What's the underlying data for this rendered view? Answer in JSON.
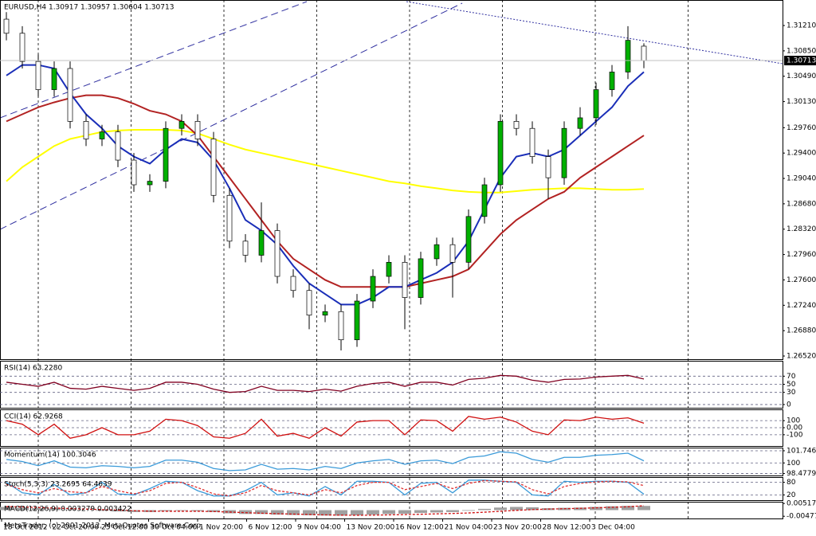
{
  "chart_data": [
    {
      "type": "candlestick",
      "title": "EURUSD,H4 1.30917 1.30957 1.30604 1.30713",
      "last_price": 1.30713,
      "ylim": [
        1.26475,
        1.31572
      ],
      "yticks": [
        {
          "value": 1.3121,
          "label": "1.31210"
        },
        {
          "value": 1.3085,
          "label": "1.30850"
        },
        {
          "value": 1.3049,
          "label": "1.30490"
        },
        {
          "value": 1.3013,
          "label": "1.30130"
        },
        {
          "value": 1.2976,
          "label": "1.29760"
        },
        {
          "value": 1.294,
          "label": "1.29400"
        },
        {
          "value": 1.2904,
          "label": "1.29040"
        },
        {
          "value": 1.2868,
          "label": "1.28680"
        },
        {
          "value": 1.2832,
          "label": "1.28320"
        },
        {
          "value": 1.2796,
          "label": "1.27960"
        },
        {
          "value": 1.276,
          "label": "1.27600"
        },
        {
          "value": 1.2724,
          "label": "1.27240"
        },
        {
          "value": 1.2688,
          "label": "1.26880"
        },
        {
          "value": 1.2652,
          "label": "1.26520"
        }
      ],
      "x_labels": [
        "18 Oct 2012",
        "22 Oct 20:00",
        "25 Oct 12:00",
        "30 Oct 04:00",
        "1 Nov 20:00",
        "6 Nov 12:00",
        "9 Nov 04:00",
        "13 Nov 20:00",
        "16 Nov 12:00",
        "21 Nov 04:00",
        "23 Nov 20:00",
        "28 Nov 12:00",
        "3 Dec 04:00"
      ],
      "up_color": "#00b000",
      "down_color": "#ffffff",
      "open": [
        1.313,
        1.311,
        1.307,
        1.303,
        1.306,
        1.2985,
        1.296,
        1.297,
        1.293,
        1.2895,
        1.29,
        1.2975,
        1.2985,
        1.296,
        1.288,
        1.2815,
        1.2795,
        1.283,
        1.2765,
        1.2745,
        1.271,
        1.2715,
        1.2675,
        1.273,
        1.2765,
        1.2785,
        1.2735,
        1.279,
        1.281,
        1.2785,
        1.285,
        1.2895,
        1.2985,
        1.2975,
        1.2935,
        1.2905,
        1.2975,
        1.299,
        1.303,
        1.3055,
        1.30917
      ],
      "high": [
        1.314,
        1.312,
        1.308,
        1.307,
        1.307,
        1.2995,
        1.298,
        1.298,
        1.294,
        1.291,
        1.2985,
        1.2995,
        1.2995,
        1.297,
        1.289,
        1.2825,
        1.287,
        1.284,
        1.2775,
        1.2755,
        1.2725,
        1.2725,
        1.274,
        1.2775,
        1.2795,
        1.2795,
        1.28,
        1.282,
        1.282,
        1.286,
        1.2905,
        1.2995,
        1.2995,
        1.2985,
        1.2945,
        1.2985,
        1.3005,
        1.304,
        1.3065,
        1.312,
        1.30957
      ],
      "low": [
        1.31,
        1.306,
        1.302,
        1.302,
        1.2975,
        1.295,
        1.295,
        1.292,
        1.2885,
        1.2885,
        1.289,
        1.2965,
        1.295,
        1.287,
        1.2805,
        1.2785,
        1.2785,
        1.2755,
        1.2735,
        1.269,
        1.27,
        1.266,
        1.2665,
        1.272,
        1.2755,
        1.269,
        1.2725,
        1.278,
        1.2735,
        1.2775,
        1.284,
        1.2885,
        1.2965,
        1.2925,
        1.2875,
        1.2895,
        1.2965,
        1.298,
        1.302,
        1.3045,
        1.30604
      ],
      "close": [
        1.311,
        1.307,
        1.303,
        1.306,
        1.2985,
        1.296,
        1.297,
        1.293,
        1.2895,
        1.29,
        1.2975,
        1.2985,
        1.296,
        1.288,
        1.2815,
        1.2795,
        1.283,
        1.2765,
        1.2745,
        1.271,
        1.2715,
        1.2675,
        1.273,
        1.2765,
        1.2785,
        1.2735,
        1.279,
        1.281,
        1.2785,
        1.285,
        1.2895,
        1.2985,
        1.2975,
        1.2935,
        1.2905,
        1.2975,
        1.299,
        1.303,
        1.3055,
        1.31,
        1.30713
      ],
      "series": [
        {
          "color": "#ffff00",
          "values": [
            1.29,
            1.292,
            1.2935,
            1.295,
            1.296,
            1.2965,
            1.297,
            1.2972,
            1.2973,
            1.2973,
            1.2973,
            1.2972,
            1.2968,
            1.296,
            1.2952,
            1.2945,
            1.294,
            1.2935,
            1.293,
            1.2925,
            1.292,
            1.2915,
            1.291,
            1.2905,
            1.29,
            1.2897,
            1.2893,
            1.289,
            1.2887,
            1.2885,
            1.2884,
            1.2884,
            1.2886,
            1.2888,
            1.2889,
            1.289,
            1.289,
            1.2889,
            1.2888,
            1.2888,
            1.2889
          ]
        },
        {
          "color": "#b22222",
          "values": [
            1.2985,
            1.2995,
            1.3005,
            1.3012,
            1.3018,
            1.3022,
            1.3022,
            1.3018,
            1.301,
            1.3,
            1.2995,
            1.2985,
            1.2965,
            1.2935,
            1.2905,
            1.2875,
            1.2845,
            1.2815,
            1.279,
            1.2775,
            1.276,
            1.275,
            1.275,
            1.275,
            1.275,
            1.275,
            1.2755,
            1.276,
            1.2765,
            1.2775,
            1.28,
            1.2825,
            1.2845,
            1.286,
            1.2875,
            1.2885,
            1.2905,
            1.292,
            1.2935,
            1.295,
            1.2965
          ]
        },
        {
          "color": "#1a2eb8",
          "values": [
            1.305,
            1.3065,
            1.3065,
            1.306,
            1.3025,
            1.2995,
            1.2975,
            1.295,
            1.2935,
            1.2925,
            1.2945,
            1.296,
            1.2955,
            1.293,
            1.289,
            1.2845,
            1.283,
            1.281,
            1.278,
            1.2755,
            1.274,
            1.2725,
            1.2725,
            1.2735,
            1.275,
            1.275,
            1.276,
            1.277,
            1.2785,
            1.2815,
            1.286,
            1.2905,
            1.2935,
            1.294,
            1.2935,
            1.2945,
            1.2965,
            1.2985,
            1.3005,
            1.3035,
            1.3055
          ]
        }
      ]
    },
    {
      "type": "indicator",
      "title": "RSI(14) 63.2280",
      "ylim": [
        -8,
        108
      ],
      "yticks": [
        70,
        50,
        30,
        0
      ],
      "grid": true,
      "series": [
        {
          "color": "#800020",
          "style": "line",
          "values": [
            55,
            50,
            45,
            55,
            40,
            38,
            45,
            40,
            35,
            40,
            55,
            55,
            50,
            38,
            30,
            32,
            45,
            35,
            35,
            32,
            38,
            33,
            45,
            52,
            55,
            45,
            55,
            55,
            48,
            62,
            65,
            72,
            70,
            60,
            55,
            62,
            63,
            68,
            70,
            72,
            63
          ]
        }
      ]
    },
    {
      "type": "indicator",
      "title": "CCI(14) 62.9268",
      "ylim": [
        -260,
        260
      ],
      "yticks": [
        100,
        {
          "value": 0,
          "label": "0.00"
        },
        -100
      ],
      "grid": true,
      "series": [
        {
          "color": "#d01010",
          "style": "line",
          "values": [
            100,
            50,
            -100,
            50,
            -150,
            -100,
            0,
            -100,
            -100,
            -50,
            120,
            100,
            30,
            -130,
            -150,
            -80,
            120,
            -120,
            -80,
            -150,
            0,
            -120,
            80,
            100,
            100,
            -100,
            110,
            100,
            -50,
            160,
            120,
            150,
            80,
            -50,
            -100,
            110,
            100,
            150,
            120,
            140,
            63
          ]
        }
      ]
    },
    {
      "type": "indicator",
      "title": "Momentum(14) 100.3046",
      "ylim": [
        98.2,
        102.2
      ],
      "yticks": [
        101.7462,
        100,
        98.4779
      ],
      "grid": true,
      "series": [
        {
          "color": "#3a9ad9",
          "style": "line",
          "values": [
            100.5,
            100.2,
            99.6,
            100.3,
            99.4,
            99.3,
            99.6,
            99.5,
            99.3,
            99.5,
            100.4,
            100.4,
            100.1,
            99.2,
            98.9,
            99.0,
            99.8,
            99.1,
            99.2,
            99.0,
            99.5,
            99.2,
            100.0,
            100.3,
            100.5,
            99.8,
            100.3,
            100.4,
            99.9,
            100.8,
            101.0,
            101.6,
            101.4,
            100.5,
            100.1,
            100.8,
            100.8,
            101.1,
            101.2,
            101.4,
            100.3
          ]
        }
      ]
    },
    {
      "type": "indicator",
      "title": "Stoch(5,3,3) 23.2695 64.4639",
      "ylim": [
        -5,
        105
      ],
      "yticks": [
        80,
        20
      ],
      "grid": true,
      "series": [
        {
          "color": "#3a9ad9",
          "style": "line",
          "values": [
            80,
            30,
            20,
            70,
            20,
            30,
            80,
            25,
            20,
            50,
            85,
            80,
            40,
            15,
            15,
            40,
            80,
            20,
            30,
            15,
            60,
            20,
            85,
            85,
            80,
            20,
            75,
            80,
            30,
            90,
            90,
            85,
            80,
            20,
            15,
            85,
            80,
            85,
            85,
            80,
            23.2695
          ]
        },
        {
          "color": "#e03030",
          "style": "dash",
          "values": [
            70,
            45,
            30,
            50,
            35,
            30,
            60,
            40,
            25,
            40,
            75,
            80,
            55,
            25,
            15,
            30,
            65,
            40,
            30,
            20,
            45,
            30,
            65,
            80,
            80,
            45,
            60,
            75,
            50,
            75,
            88,
            85,
            82,
            45,
            25,
            60,
            75,
            82,
            85,
            82,
            64.4639
          ]
        }
      ]
    },
    {
      "type": "indicator",
      "title": "MACD(12,26,9) 0.003279 0.003422",
      "ylim": [
        -0.0065,
        0.0065
      ],
      "yticks": [
        0.005172,
        -0.00477
      ],
      "grid": false,
      "series": [
        {
          "color": "#a0a0a0",
          "style": "hist",
          "values": [
            0.0025,
            0.002,
            0.0015,
            0.0012,
            0.0005,
            0,
            -0.0005,
            -0.001,
            -0.0015,
            -0.0015,
            -0.0008,
            -0.0005,
            -0.0008,
            -0.0015,
            -0.0025,
            -0.003,
            -0.003,
            -0.0035,
            -0.0038,
            -0.004,
            -0.0042,
            -0.0043,
            -0.004,
            -0.0035,
            -0.003,
            -0.0028,
            -0.0022,
            -0.0018,
            -0.0015,
            -0.0005,
            0.001,
            0.002,
            0.0025,
            0.0022,
            0.0015,
            0.0018,
            0.002,
            0.0025,
            0.003,
            0.0033,
            0.003279
          ]
        },
        {
          "color": "#d01010",
          "style": "dash",
          "values": [
            0.0028,
            0.0025,
            0.002,
            0.0016,
            0.0012,
            0.0008,
            0.0004,
            0,
            -0.0005,
            -0.0008,
            -0.0009,
            -0.0009,
            -0.0009,
            -0.0011,
            -0.0015,
            -0.002,
            -0.0024,
            -0.0028,
            -0.0031,
            -0.0034,
            -0.0037,
            -0.0039,
            -0.004,
            -0.0039,
            -0.0037,
            -0.0035,
            -0.0032,
            -0.0029,
            -0.0026,
            -0.0022,
            -0.0016,
            -0.0009,
            -0.0002,
            0.0004,
            0.0008,
            0.0011,
            0.0014,
            0.0018,
            0.0022,
            0.0026,
            0.003422
          ]
        }
      ]
    }
  ],
  "footer": "MetaTrader, (c) 2001-2012, MetaQuotes Software Corp."
}
